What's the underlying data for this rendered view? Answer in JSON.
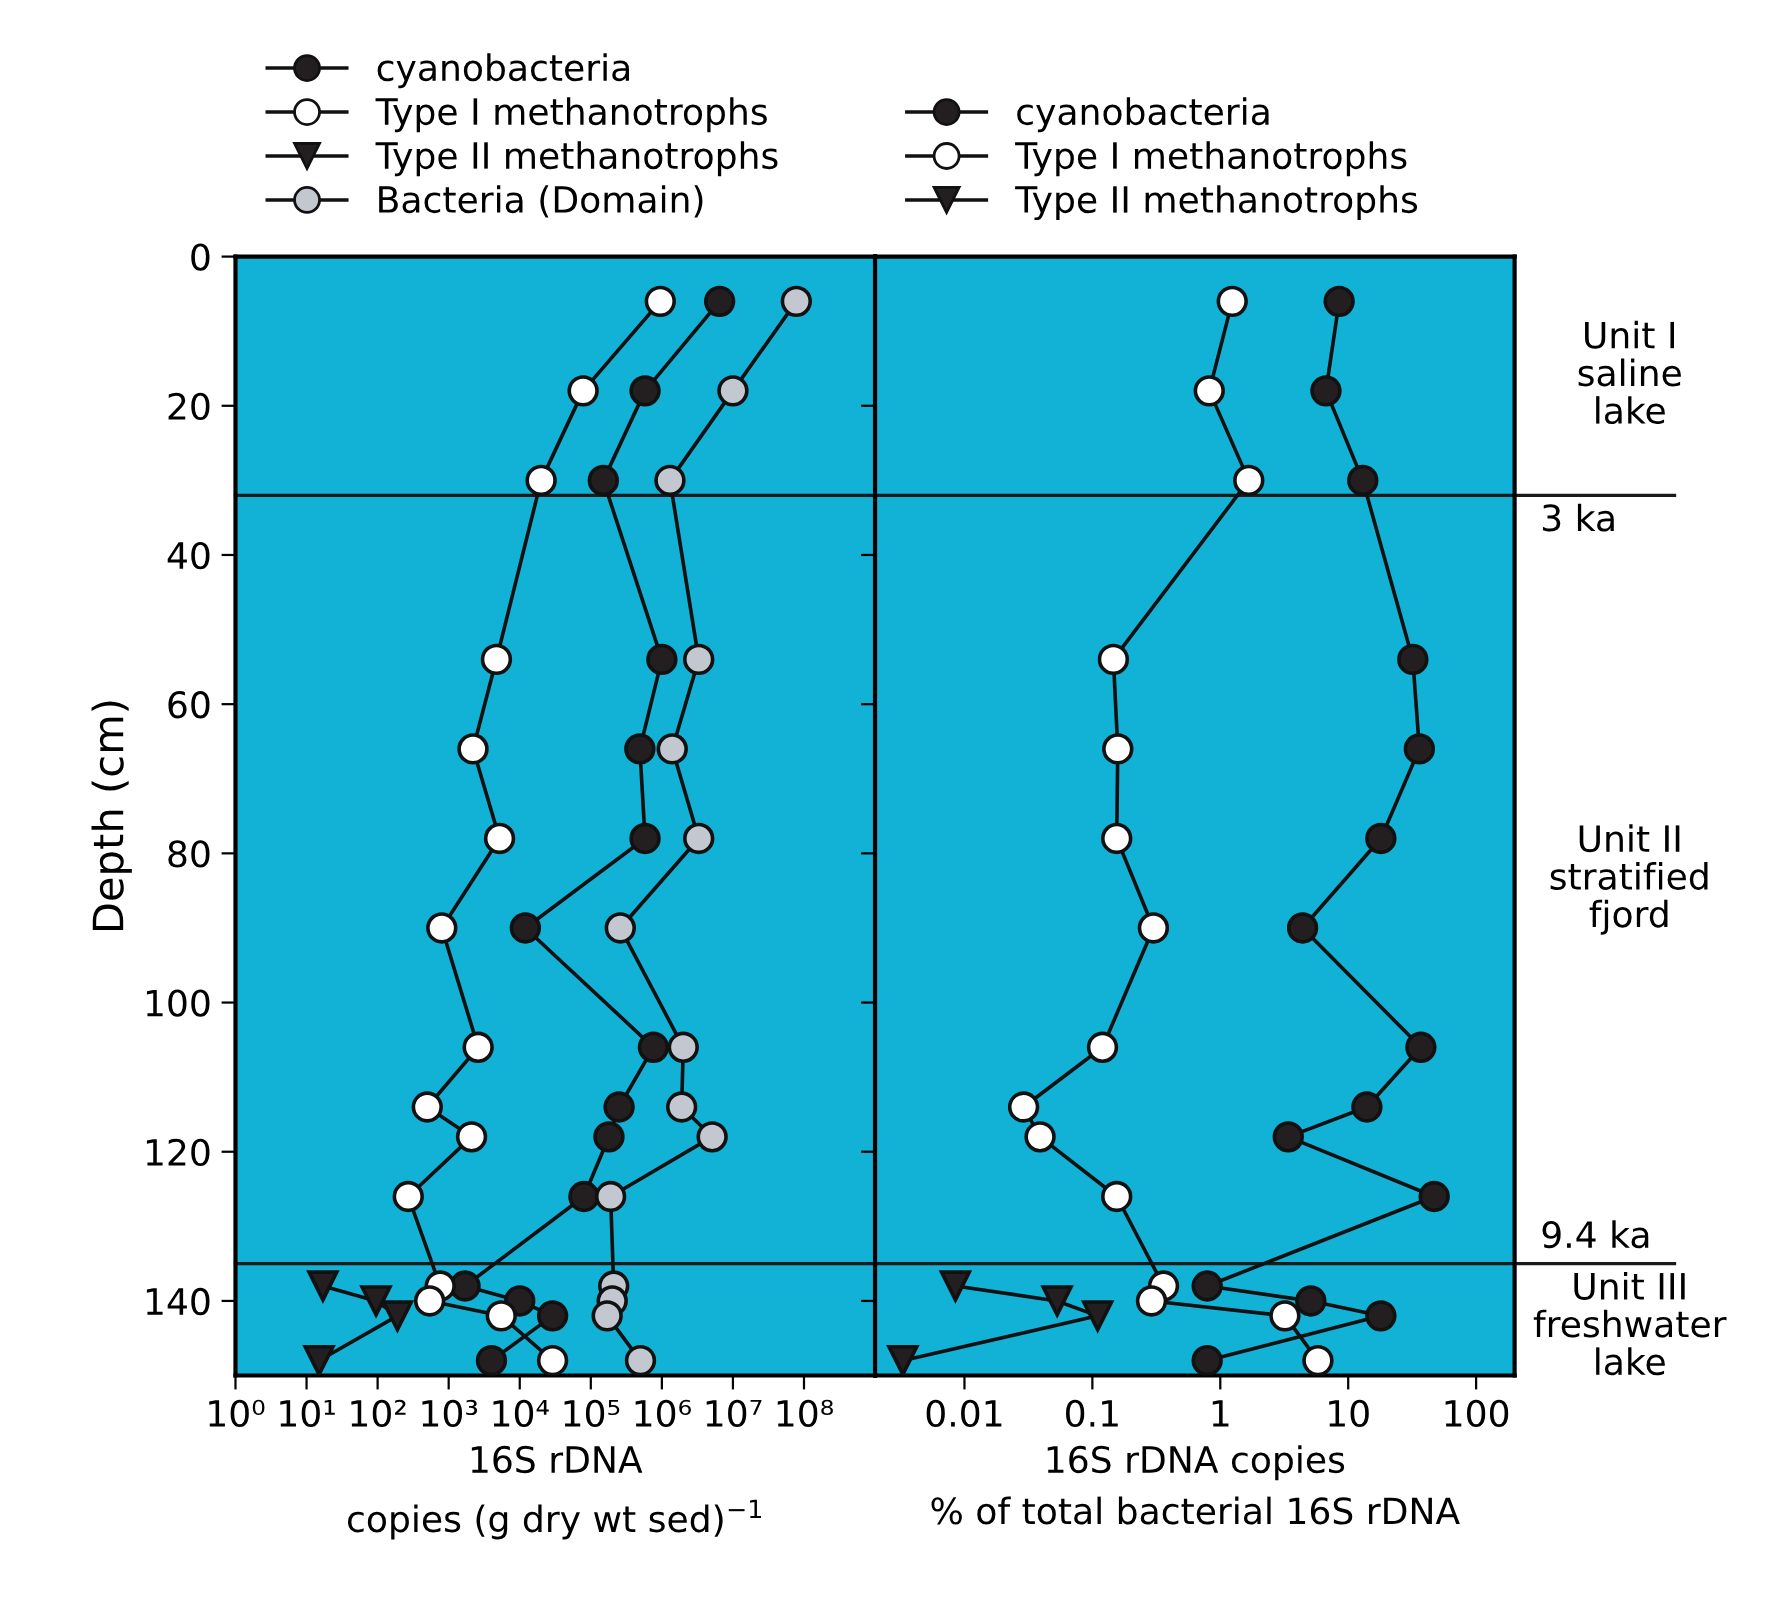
{
  "chart_data": [
    {
      "type": "line",
      "orientation": "horizontal",
      "log": "x",
      "ylabel": "Depth (cm)",
      "xlabel": "16S rDNA\ncopies (g dry wt sed)$^{−1}$",
      "xlim": [
        1,
        1000000000
      ],
      "xticks": [
        {
          "value": 1,
          "label": "10⁰"
        },
        {
          "value": 10,
          "label": "10¹"
        },
        {
          "value": 100,
          "label": "10²"
        },
        {
          "value": 1000,
          "label": "10³"
        },
        {
          "value": 10000,
          "label": "10⁴"
        },
        {
          "value": 100000,
          "label": "10⁵"
        },
        {
          "value": 1000000,
          "label": "10⁶"
        },
        {
          "value": 10000000,
          "label": "10⁷"
        },
        {
          "value": 100000000,
          "label": "10⁸"
        }
      ],
      "ylim": [
        150,
        0
      ],
      "yticks": [
        0,
        20,
        40,
        60,
        80,
        100,
        120,
        140
      ],
      "legend": "top",
      "grid": false,
      "ref_lines": [
        {
          "axis": "y",
          "value": 32,
          "color": "#1a1a1a"
        },
        {
          "axis": "y",
          "value": 135,
          "color": "#1a1a1a"
        }
      ],
      "series": [
        {
          "name": "cyanobacteria",
          "color": "#231f20",
          "marker": "circle",
          "x": [
            6,
            18,
            30,
            54,
            66,
            78,
            90,
            106,
            114,
            118,
            126,
            138,
            140,
            142,
            148
          ],
          "values": [
            6500000,
            580000,
            150000,
            1000000,
            490000,
            580000,
            12000,
            760000,
            250000,
            180000,
            80000,
            1700,
            10000,
            29000,
            4000
          ]
        },
        {
          "name": "Type I methanotrophs",
          "color": "#ffffff",
          "marker": "circle",
          "x": [
            6,
            18,
            30,
            54,
            66,
            78,
            90,
            106,
            114,
            118,
            126,
            138,
            140,
            142,
            148
          ],
          "values": [
            950000,
            78000,
            20000,
            4700,
            2200,
            5200,
            800,
            2600,
            500,
            2100,
            270,
            760,
            540,
            5500,
            29000
          ]
        },
        {
          "name": "Type II methanotrophs",
          "color": "#231f20",
          "marker": "triangle",
          "x": [
            138,
            140,
            142,
            148
          ],
          "values": [
            17,
            95,
            190,
            15
          ]
        },
        {
          "name": "Bacteria (Domain)",
          "color": "#c3c7cf",
          "marker": "circle",
          "x": [
            6,
            18,
            30,
            54,
            66,
            78,
            90,
            106,
            114,
            118,
            126,
            138,
            140,
            142,
            148
          ],
          "values": [
            78000000,
            10000000,
            1300000,
            3300000,
            1400000,
            3300000,
            260000,
            2000000,
            1900000,
            5100000,
            190000,
            210000,
            200000,
            170000,
            500000
          ]
        }
      ]
    },
    {
      "type": "line",
      "orientation": "horizontal",
      "log": "x",
      "xlabel": "16S rDNA copies\n% of total bacterial 16S rDNA",
      "tick_labels": "x",
      "xlim": [
        0.002,
        200
      ],
      "xticks": [
        0.01,
        0.1,
        1,
        10,
        100
      ],
      "ylim": [
        150,
        0
      ],
      "yticks": [
        0,
        20,
        40,
        60,
        80,
        100,
        120,
        140
      ],
      "legend": "top",
      "grid": false,
      "ref_lines": [
        {
          "axis": "y",
          "value": 32,
          "label": "3 ka",
          "color": "#1a1a1a"
        },
        {
          "axis": "y",
          "value": 135,
          "label": "9.4 ka",
          "color": "#1a1a1a"
        }
      ],
      "annotations": [
        "Unit I\nsaline\nlake",
        "Unit II\nstratified\nfjord",
        "Unit III\nfreshwater\nlake"
      ],
      "series": [
        {
          "name": "cyanobacteria",
          "color": "#231f20",
          "marker": "circle",
          "x": [
            6,
            18,
            30,
            54,
            66,
            78,
            90,
            106,
            114,
            118,
            126,
            138,
            140,
            142,
            148
          ],
          "values": [
            8.5,
            6.7,
            13,
            32,
            36,
            18,
            4.4,
            37,
            14,
            3.4,
            47,
            0.79,
            5.1,
            18,
            0.79
          ]
        },
        {
          "name": "Type I methanotrophs",
          "color": "#ffffff",
          "marker": "circle",
          "x": [
            6,
            18,
            30,
            54,
            66,
            78,
            90,
            106,
            114,
            118,
            126,
            138,
            140,
            142,
            148
          ],
          "values": [
            1.24,
            0.82,
            1.67,
            0.146,
            0.158,
            0.155,
            0.3,
            0.12,
            0.029,
            0.039,
            0.155,
            0.36,
            0.29,
            3.2,
            5.8
          ]
        },
        {
          "name": "Type II methanotrophs",
          "color": "#231f20",
          "marker": "triangle",
          "x": [
            138,
            140,
            142,
            148
          ],
          "values": [
            0.0085,
            0.053,
            0.11,
            0.0033
          ]
        }
      ]
    }
  ]
}
